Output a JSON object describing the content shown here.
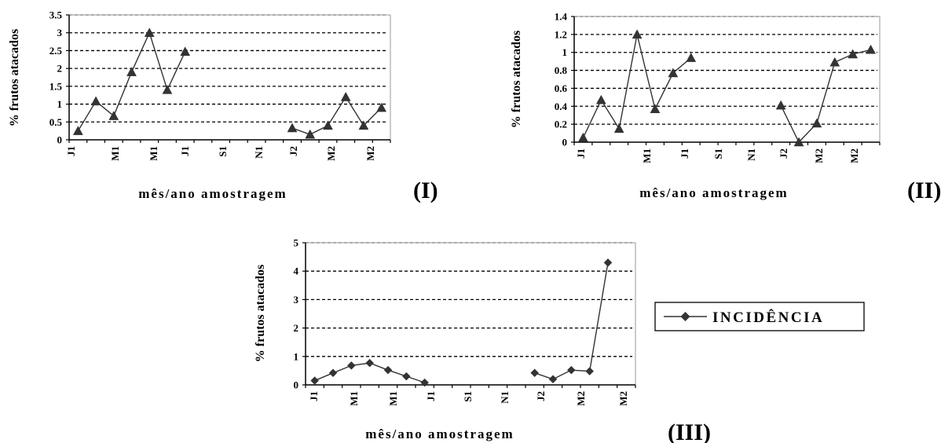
{
  "chart_data": [
    {
      "id": "I",
      "type": "line",
      "panel_label": "(I)",
      "ylabel": "% frutos atacados",
      "xlabel": "mês/ano amostragem",
      "ylim": [
        0,
        3.5
      ],
      "yticks": [
        "0",
        "0.5",
        "1",
        "1.5",
        "2",
        "2.5",
        "3",
        "3.5"
      ],
      "yticks_values": [
        0,
        0.5,
        1,
        1.5,
        2,
        2.5,
        3,
        3.5
      ],
      "xtick_labels": [
        "J1",
        "M1",
        "M1",
        "J1",
        "S1",
        "N1",
        "J2",
        "M2",
        "M2"
      ],
      "grid": true,
      "marker": "triangle",
      "series": [
        {
          "segment": 1,
          "values": [
            0.25,
            1.08,
            0.67,
            1.9,
            3.0,
            1.4,
            2.47
          ]
        },
        {
          "segment": 2,
          "values": [
            0.33,
            0.15,
            0.4,
            1.2,
            0.4,
            0.9
          ]
        }
      ]
    },
    {
      "id": "II",
      "type": "line",
      "panel_label": "(II)",
      "ylabel": "% frutos atacados",
      "xlabel": "mês/ano amostragem",
      "ylim": [
        0,
        1.4
      ],
      "yticks": [
        "0",
        "0.2",
        "0.4",
        "0.6",
        "0.8",
        "1",
        "1.2",
        "1.4"
      ],
      "yticks_values": [
        0,
        0.2,
        0.4,
        0.6,
        0.8,
        1,
        1.2,
        1.4
      ],
      "xtick_labels": [
        "J1",
        "M1",
        "J1",
        "S1",
        "N1",
        "J2",
        "M2",
        "M2"
      ],
      "grid": true,
      "marker": "triangle",
      "series": [
        {
          "segment": 1,
          "values": [
            0.05,
            0.47,
            0.15,
            1.2,
            0.37,
            0.77,
            0.94
          ]
        },
        {
          "segment": 2,
          "values": [
            0.41,
            0.0,
            0.21,
            0.89,
            0.98,
            1.03
          ]
        }
      ]
    },
    {
      "id": "III",
      "type": "line",
      "panel_label": "(III)",
      "ylabel": "% frutos atacados",
      "xlabel": "mês/ano amostragem",
      "ylim": [
        0,
        5
      ],
      "yticks": [
        "0",
        "1",
        "2",
        "3",
        "4",
        "5"
      ],
      "yticks_values": [
        0,
        1,
        2,
        3,
        4,
        5
      ],
      "xtick_labels": [
        "J1",
        "M1",
        "M1",
        "J1",
        "S1",
        "N1",
        "J2",
        "M2",
        "M2"
      ],
      "grid": true,
      "marker": "diamond",
      "legend": {
        "label": "INCIDÊNCIA",
        "placement": "right"
      },
      "series": [
        {
          "segment": 1,
          "values": [
            0.15,
            0.42,
            0.68,
            0.77,
            0.52,
            0.3,
            0.08
          ]
        },
        {
          "segment": 2,
          "values": [
            0.42,
            0.2,
            0.52,
            0.48,
            4.3
          ]
        }
      ]
    }
  ]
}
